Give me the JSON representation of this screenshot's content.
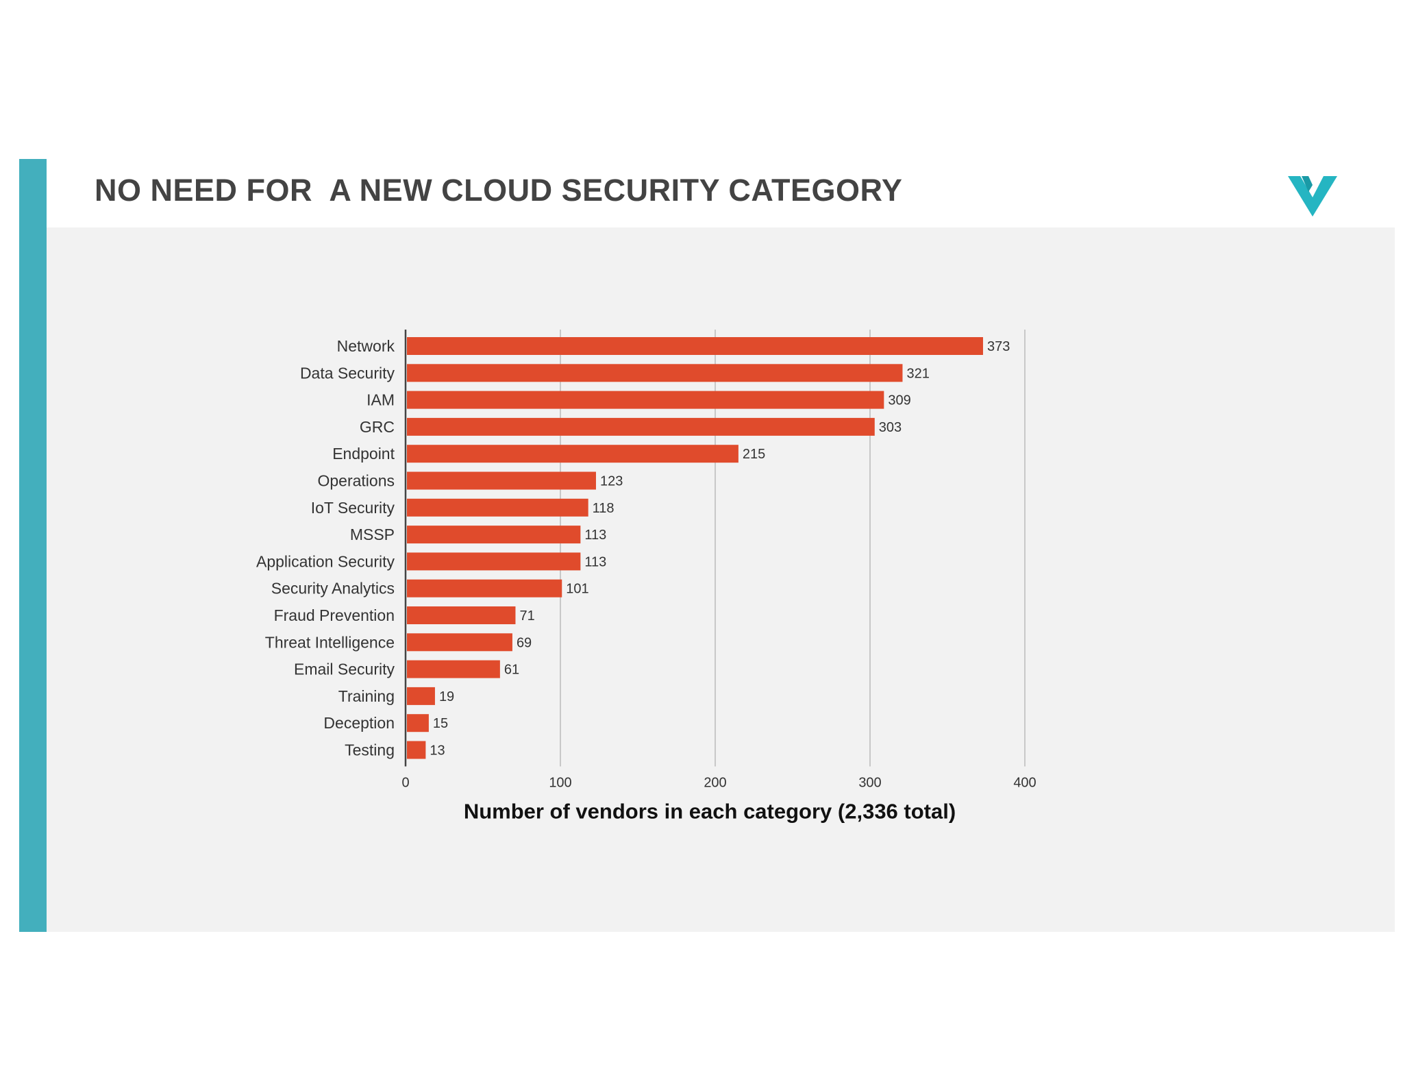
{
  "slide": {
    "title": "NO NEED FOR  A NEW CLOUD SECURITY CATEGORY",
    "accent_color": "#43afbd",
    "logo_icon": "v-check-logo-icon"
  },
  "chart_data": {
    "type": "bar",
    "orientation": "horizontal",
    "categories": [
      "Network",
      "Data Security",
      "IAM",
      "GRC",
      "Endpoint",
      "Operations",
      "IoT Security",
      "MSSP",
      "Application Security",
      "Security Analytics",
      "Fraud Prevention",
      "Threat Intelligence",
      "Email Security",
      "Training",
      "Deception",
      "Testing"
    ],
    "values": [
      373,
      321,
      309,
      303,
      215,
      123,
      118,
      113,
      113,
      101,
      71,
      69,
      61,
      19,
      15,
      13
    ],
    "xlabel": "Number of vendors in each category (2,336 total)",
    "ylabel": "",
    "xlim": [
      0,
      400
    ],
    "xticks": [
      0,
      100,
      200,
      300,
      400
    ],
    "grid": true,
    "bar_color": "#e04b2c",
    "grid_color": "#c8c8c8"
  }
}
